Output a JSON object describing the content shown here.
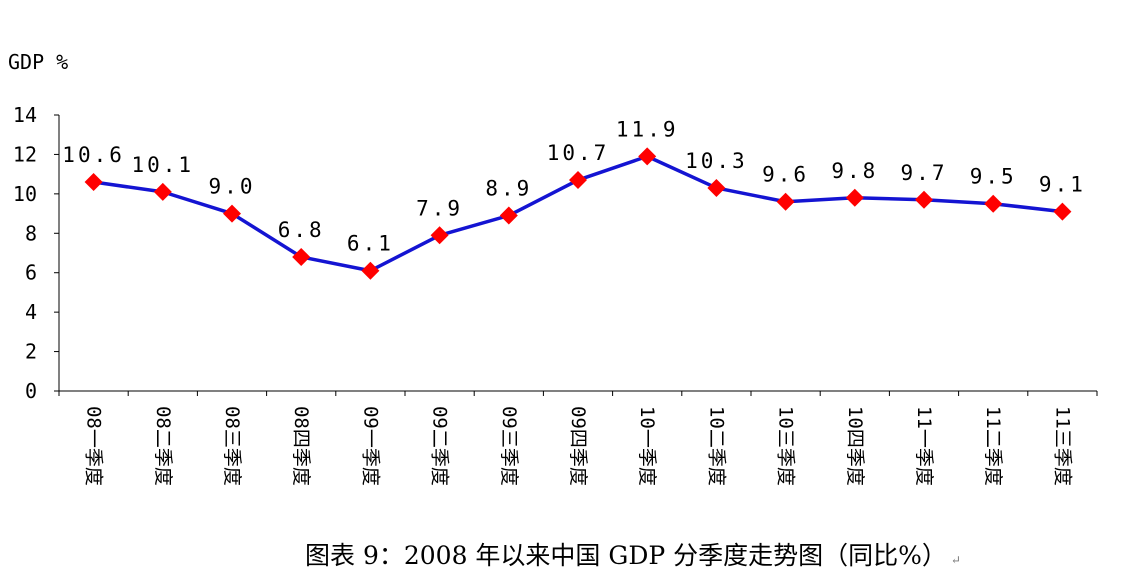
{
  "chart_data": {
    "type": "line",
    "ylabel": "GDP %",
    "ylim": [
      0,
      14
    ],
    "yticks": [
      0,
      2,
      4,
      6,
      8,
      10,
      12,
      14
    ],
    "categories": [
      "08一季度",
      "08二季度",
      "08三季度",
      "08四季度",
      "09一季度",
      "09二季度",
      "09三季度",
      "09四季度",
      "10一季度",
      "10二季度",
      "10三季度",
      "10四季度",
      "11一季度",
      "11二季度",
      "11三季度"
    ],
    "values": [
      10.6,
      10.1,
      9.0,
      6.8,
      6.1,
      7.9,
      8.9,
      10.7,
      11.9,
      10.3,
      9.6,
      9.8,
      9.7,
      9.5,
      9.1
    ],
    "value_labels": [
      "10.6",
      "10.1",
      "9.0",
      "6.8",
      "6.1",
      "7.9",
      "8.9",
      "10.7",
      "11.9",
      "10.3",
      "9.6",
      "9.8",
      "9.7",
      "9.5",
      "9.1"
    ],
    "line_color": "#1414d2",
    "marker_color": "#ff0000",
    "marker": "diamond",
    "grid": false,
    "legend": "none"
  },
  "caption": "图表 9：2008 年以来中国 GDP 分季度走势图（同比%）",
  "caption_mark": "↵"
}
